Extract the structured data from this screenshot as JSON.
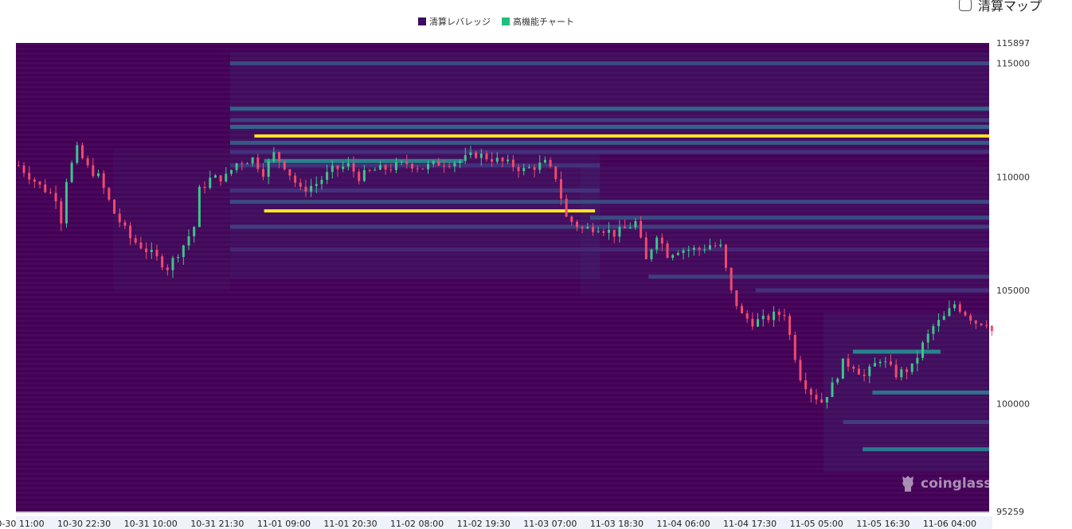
{
  "toggle": {
    "label": "清算マップ",
    "checked": false
  },
  "legend": [
    {
      "label": "清算レバレッジ",
      "color": "#3b0f5c"
    },
    {
      "label": "高機能チャート",
      "color": "#1fc07c"
    }
  ],
  "watermark": {
    "text": "coinglass"
  },
  "colors": {
    "background": "#440154",
    "low": "#482878",
    "mid": "#2a788e",
    "high": "#22a884",
    "peak": "#fde725",
    "up_candle": "#3ec48a",
    "down_candle": "#ef4b6c"
  },
  "chart_data": {
    "type": "heatmap",
    "ylim": [
      95259,
      115897
    ],
    "y_ticks": [
      115897,
      115000,
      110000,
      105000,
      100000,
      95259
    ],
    "x_ticks": [
      "10-30 11:00",
      "10-30 22:30",
      "10-31 10:00",
      "10-31 21:30",
      "11-01 09:00",
      "11-01 20:30",
      "11-02 08:00",
      "11-02 19:30",
      "11-03 07:00",
      "11-03 18:30",
      "11-04 06:00",
      "11-04 17:30",
      "11-05 05:00",
      "11-05 16:30",
      "11-06 04:00"
    ],
    "price": [
      [
        0,
        110500
      ],
      [
        4,
        109600
      ],
      [
        7,
        109100
      ],
      [
        8,
        108100
      ],
      [
        9,
        109900
      ],
      [
        11,
        111200
      ],
      [
        13,
        110400
      ],
      [
        15,
        110000
      ],
      [
        18,
        108400
      ],
      [
        21,
        107300
      ],
      [
        25,
        106600
      ],
      [
        28,
        106000
      ],
      [
        31,
        107000
      ],
      [
        33,
        107800
      ],
      [
        34,
        109400
      ],
      [
        36,
        109900
      ],
      [
        39,
        110000
      ],
      [
        41,
        110600
      ],
      [
        44,
        110800
      ],
      [
        46,
        110200
      ],
      [
        48,
        111000
      ],
      [
        50,
        110500
      ],
      [
        53,
        109400
      ],
      [
        56,
        109700
      ],
      [
        59,
        110300
      ],
      [
        62,
        110500
      ],
      [
        64,
        110000
      ],
      [
        67,
        110300
      ],
      [
        70,
        110400
      ],
      [
        73,
        110600
      ],
      [
        76,
        110400
      ],
      [
        79,
        110600
      ],
      [
        83,
        110700
      ],
      [
        86,
        111000
      ],
      [
        89,
        110800
      ],
      [
        93,
        110500
      ],
      [
        95,
        110300
      ],
      [
        99,
        110600
      ],
      [
        101,
        110000
      ],
      [
        103,
        108200
      ],
      [
        106,
        107700
      ],
      [
        109,
        107800
      ],
      [
        112,
        107500
      ],
      [
        114,
        107700
      ],
      [
        116,
        108000
      ],
      [
        118,
        106300
      ],
      [
        120,
        107500
      ],
      [
        122,
        106600
      ],
      [
        124,
        106800
      ],
      [
        126,
        106800
      ],
      [
        128,
        106800
      ],
      [
        130,
        107000
      ],
      [
        132,
        106900
      ],
      [
        134,
        104900
      ],
      [
        136,
        103900
      ],
      [
        138,
        103600
      ],
      [
        140,
        103700
      ],
      [
        142,
        103900
      ],
      [
        144,
        104000
      ],
      [
        145,
        103000
      ],
      [
        147,
        101200
      ],
      [
        149,
        100500
      ],
      [
        151,
        100100
      ],
      [
        153,
        100800
      ],
      [
        155,
        101800
      ],
      [
        157,
        101700
      ],
      [
        159,
        101200
      ],
      [
        162,
        102000
      ],
      [
        165,
        101300
      ],
      [
        168,
        101600
      ],
      [
        170,
        102600
      ],
      [
        172,
        103400
      ],
      [
        174,
        103800
      ],
      [
        176,
        104400
      ],
      [
        178,
        104000
      ],
      [
        180,
        103600
      ],
      [
        182,
        103600
      ],
      [
        183,
        103200
      ]
    ],
    "price_n": 183,
    "bands": [
      {
        "y": 115000,
        "start": 0.22,
        "end": 1.0,
        "v": 0.45
      },
      {
        "y": 113000,
        "start": 0.22,
        "end": 1.0,
        "v": 0.55
      },
      {
        "y": 112500,
        "start": 0.22,
        "end": 1.0,
        "v": 0.4
      },
      {
        "y": 112200,
        "start": 0.22,
        "end": 1.0,
        "v": 0.55
      },
      {
        "y": 111800,
        "start": 0.245,
        "end": 1.0,
        "v": 1.0
      },
      {
        "y": 111500,
        "start": 0.22,
        "end": 1.0,
        "v": 0.5
      },
      {
        "y": 111100,
        "start": 0.22,
        "end": 1.0,
        "v": 0.35
      },
      {
        "y": 110700,
        "start": 0.255,
        "end": 0.46,
        "v": 0.7
      },
      {
        "y": 110500,
        "start": 0.22,
        "end": 0.6,
        "v": 0.35
      },
      {
        "y": 109400,
        "start": 0.22,
        "end": 0.6,
        "v": 0.35
      },
      {
        "y": 108900,
        "start": 0.22,
        "end": 1.0,
        "v": 0.45
      },
      {
        "y": 108500,
        "start": 0.255,
        "end": 0.595,
        "v": 1.0
      },
      {
        "y": 108200,
        "start": 0.59,
        "end": 1.0,
        "v": 0.45
      },
      {
        "y": 107800,
        "start": 0.22,
        "end": 1.0,
        "v": 0.4
      },
      {
        "y": 106800,
        "start": 0.22,
        "end": 1.0,
        "v": 0.3
      },
      {
        "y": 105600,
        "start": 0.65,
        "end": 1.0,
        "v": 0.4
      },
      {
        "y": 105000,
        "start": 0.76,
        "end": 1.0,
        "v": 0.35
      },
      {
        "y": 102300,
        "start": 0.86,
        "end": 0.95,
        "v": 0.7
      },
      {
        "y": 100500,
        "start": 0.88,
        "end": 1.0,
        "v": 0.6
      },
      {
        "y": 99200,
        "start": 0.85,
        "end": 1.0,
        "v": 0.4
      },
      {
        "y": 98000,
        "start": 0.87,
        "end": 1.0,
        "v": 0.65
      }
    ]
  }
}
